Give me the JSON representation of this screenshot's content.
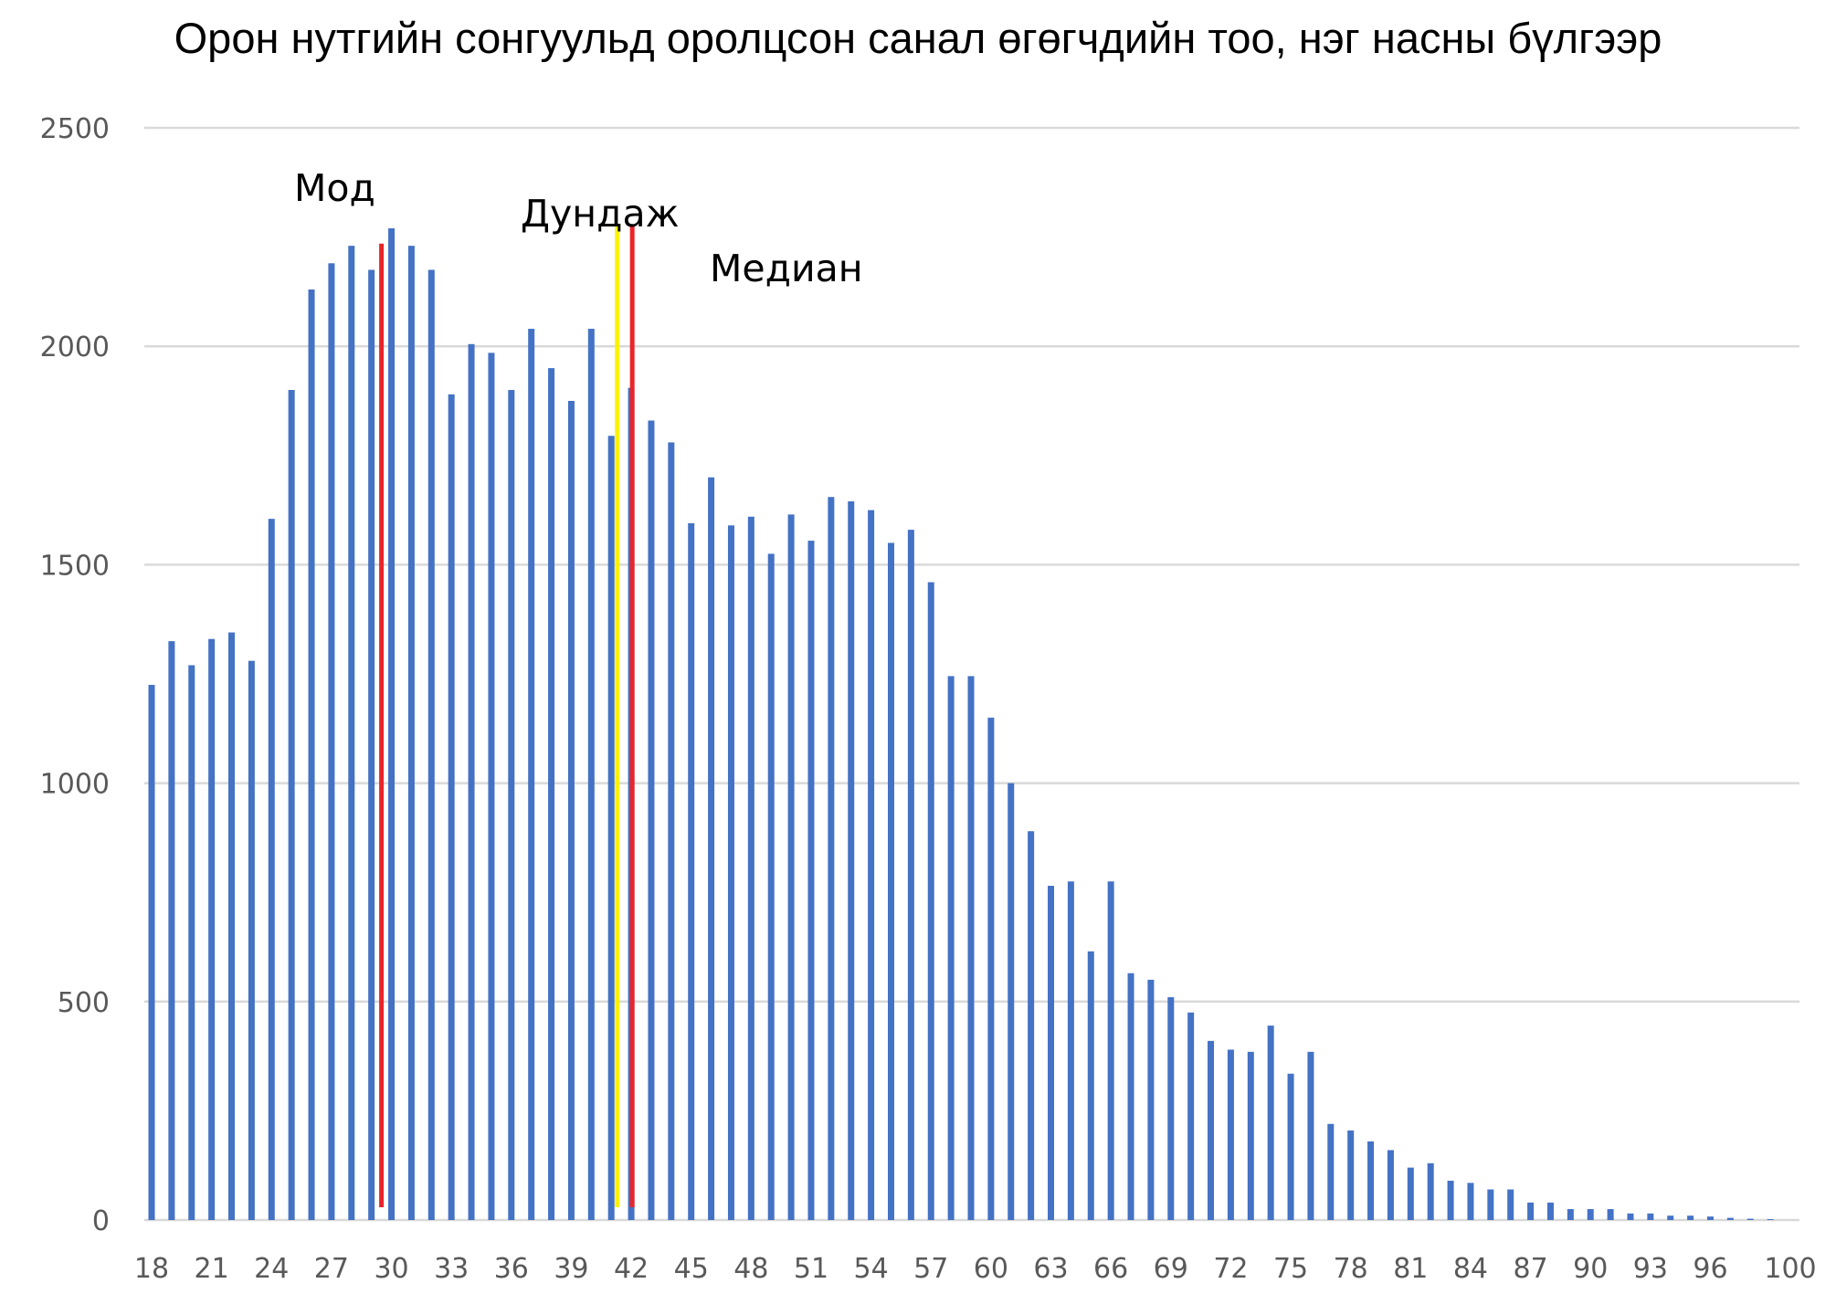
{
  "chart_data": {
    "type": "bar",
    "title": "Орон нутгийн сонгуульд оролцсон санал өгөгчдийн тоо, нэг насны бүлгээр",
    "xlabel": "",
    "ylabel": "",
    "ylim": [
      0,
      2500
    ],
    "yticks": [
      0,
      500,
      1000,
      1500,
      2000,
      2500
    ],
    "grid": true,
    "bar_color": "#4472C4",
    "x": [
      18,
      19,
      20,
      21,
      22,
      23,
      24,
      25,
      26,
      27,
      28,
      29,
      30,
      31,
      32,
      33,
      34,
      35,
      36,
      37,
      38,
      39,
      40,
      41,
      42,
      43,
      44,
      45,
      46,
      47,
      48,
      49,
      50,
      51,
      52,
      53,
      54,
      55,
      56,
      57,
      58,
      59,
      60,
      61,
      62,
      63,
      64,
      65,
      66,
      67,
      68,
      69,
      70,
      71,
      72,
      73,
      74,
      75,
      76,
      77,
      78,
      79,
      80,
      81,
      82,
      83,
      84,
      85,
      86,
      87,
      88,
      89,
      90,
      91,
      92,
      93,
      94,
      95,
      96,
      97,
      98,
      99,
      100
    ],
    "values": [
      1225,
      1325,
      1270,
      1330,
      1345,
      1280,
      1605,
      1900,
      2130,
      2190,
      2230,
      2175,
      2270,
      2230,
      2175,
      1890,
      2005,
      1985,
      1900,
      2040,
      1950,
      1875,
      2040,
      1795,
      1905,
      1830,
      1780,
      1595,
      1700,
      1590,
      1610,
      1525,
      1615,
      1555,
      1655,
      1645,
      1625,
      1550,
      1580,
      1460,
      1245,
      1245,
      1150,
      1000,
      890,
      765,
      775,
      615,
      775,
      565,
      550,
      510,
      475,
      410,
      390,
      385,
      445,
      335,
      385,
      220,
      205,
      180,
      160,
      120,
      130,
      90,
      85,
      70,
      70,
      40,
      40,
      25,
      25,
      25,
      15,
      15,
      10,
      10,
      8,
      5,
      3,
      2,
      0
    ],
    "xtick_labels": [
      "18",
      "21",
      "24",
      "27",
      "30",
      "33",
      "36",
      "39",
      "42",
      "45",
      "48",
      "51",
      "54",
      "57",
      "60",
      "63",
      "66",
      "69",
      "72",
      "75",
      "78",
      "81",
      "84",
      "87",
      "90",
      "93",
      "96",
      "100"
    ],
    "markers": [
      {
        "label": "Мод",
        "x": 29.5,
        "top_value": 2235,
        "color": "#E8262A"
      },
      {
        "label": "Дундаж",
        "x": 41.3,
        "top_value": 2275,
        "color": "#FFF200"
      },
      {
        "label": "Медиан",
        "x": 42.05,
        "top_value": 2275,
        "color": "#E8262A"
      }
    ]
  }
}
